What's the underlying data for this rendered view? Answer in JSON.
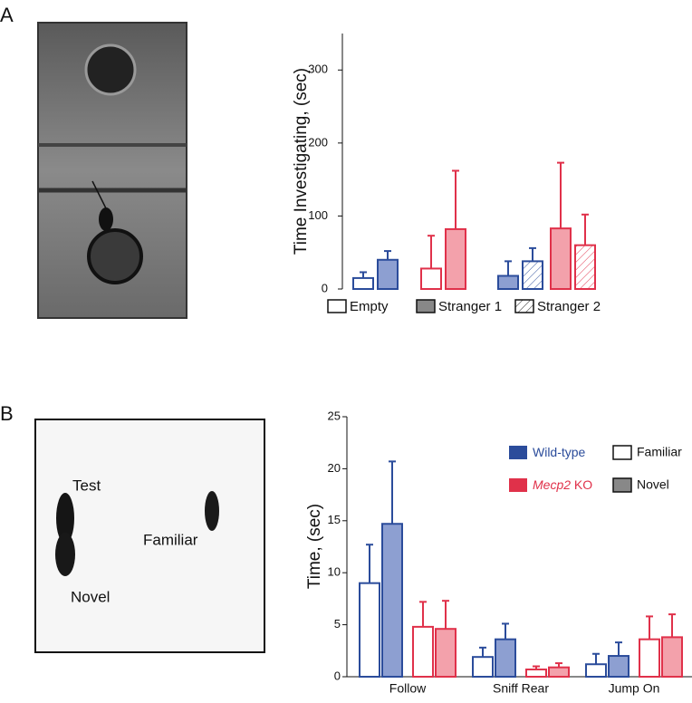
{
  "panel_labels": [
    "A",
    "B"
  ],
  "photo_labels": [
    "Test",
    "Novel",
    "Familiar"
  ],
  "chart_data": [
    {
      "type": "bar",
      "ylabel": "Time Investigating, (sec)",
      "ylim": [
        0,
        350
      ],
      "yticks": [
        0,
        100,
        200,
        300
      ],
      "legend": [
        "Empty",
        "Stranger 1",
        "Stranger 2"
      ],
      "groups": [
        {
          "color": "#2b4c9b",
          "fills": [
            "open",
            "filled"
          ],
          "values": [
            15,
            40
          ],
          "errors": [
            8,
            12
          ]
        },
        {
          "color": "#e0314a",
          "fills": [
            "open",
            "filled"
          ],
          "values": [
            28,
            82
          ],
          "errors": [
            45,
            80
          ]
        },
        {
          "color": "#2b4c9b",
          "fills": [
            "filled",
            "hatched"
          ],
          "values": [
            18,
            38
          ],
          "errors": [
            20,
            18
          ]
        },
        {
          "color": "#e0314a",
          "fills": [
            "filled",
            "hatched"
          ],
          "values": [
            83,
            60
          ],
          "errors": [
            90,
            42
          ]
        }
      ]
    },
    {
      "type": "bar",
      "ylabel": "Time, (sec)",
      "ylim": [
        0,
        25
      ],
      "yticks": [
        0,
        5,
        10,
        15,
        20,
        25
      ],
      "categories": [
        "Follow",
        "Sniff Rear",
        "Jump On"
      ],
      "genotypes": [
        {
          "label": "Wild-type",
          "color": "#2b4c9b"
        },
        {
          "label": "Mecp2",
          "suffix": " KO",
          "color": "#e0314a"
        }
      ],
      "conditions": [
        {
          "label": "Familiar",
          "fill": "open"
        },
        {
          "label": "Novel",
          "fill": "filled"
        }
      ],
      "series": [
        {
          "genotype": 0,
          "condition": 0,
          "values": [
            9,
            1.9,
            1.2
          ],
          "errors": [
            3.7,
            0.9,
            1.0
          ]
        },
        {
          "genotype": 0,
          "condition": 1,
          "values": [
            14.7,
            3.6,
            2.0
          ],
          "errors": [
            6,
            1.5,
            1.3
          ]
        },
        {
          "genotype": 1,
          "condition": 0,
          "values": [
            4.8,
            0.7,
            3.6
          ],
          "errors": [
            2.4,
            0.3,
            2.2
          ]
        },
        {
          "genotype": 1,
          "condition": 1,
          "values": [
            4.6,
            0.9,
            3.8
          ],
          "errors": [
            2.7,
            0.4,
            2.2
          ]
        }
      ]
    }
  ]
}
